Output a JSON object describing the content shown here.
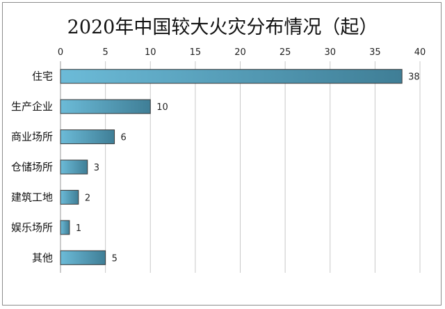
{
  "chart_data": {
    "type": "bar",
    "orientation": "horizontal",
    "title": "2020年中国较大火灾分布情况（起）",
    "categories": [
      "住宅",
      "生产企业",
      "商业场所",
      "仓储场所",
      "建筑工地",
      "娱乐场所",
      "其他"
    ],
    "values": [
      38,
      10,
      6,
      3,
      2,
      1,
      5
    ],
    "xlim": [
      0,
      40
    ],
    "xticks": [
      "0",
      "5",
      "10",
      "15",
      "20",
      "25",
      "30",
      "35",
      "40"
    ],
    "xaxis_position": "top",
    "grid": true,
    "legend": "none",
    "colors": {
      "bar_light": "#6cbbd8",
      "bar_dark": "#3f7e96"
    }
  }
}
